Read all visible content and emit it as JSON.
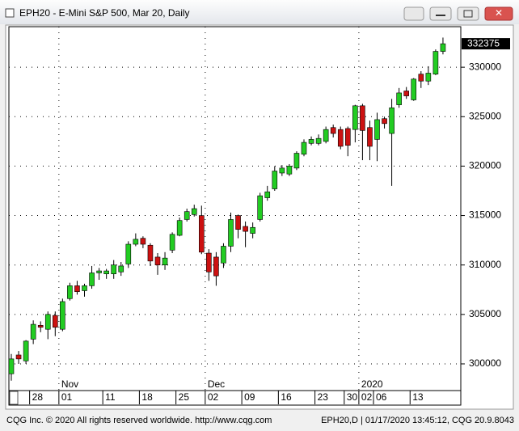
{
  "window": {
    "title": "EPH20 - E-Mini S&P 500, Mar 20, Daily"
  },
  "footer": {
    "left": "CQG Inc. © 2020 All rights reserved worldwide. http://www.cqg.com",
    "right": "EPH20,D | 01/17/2020 13:45:12, CQG 20.9.8043"
  },
  "chart_data": {
    "type": "candlestick",
    "categories": [
      null,
      null,
      null,
      "28",
      null,
      null,
      null,
      "01",
      null,
      null,
      null,
      null,
      null,
      "11",
      null,
      null,
      null,
      null,
      "18",
      null,
      null,
      null,
      null,
      "25",
      null,
      null,
      null,
      "02",
      null,
      null,
      null,
      null,
      "09",
      null,
      null,
      null,
      null,
      "16",
      null,
      null,
      null,
      null,
      "23",
      null,
      null,
      null,
      "30",
      null,
      "02",
      null,
      "06",
      null,
      null,
      null,
      null,
      "13",
      null,
      null,
      null,
      null
    ],
    "period_labels": [
      null,
      null,
      null,
      null,
      null,
      null,
      null,
      "Nov",
      null,
      null,
      null,
      null,
      null,
      null,
      null,
      null,
      null,
      null,
      null,
      null,
      null,
      null,
      null,
      null,
      null,
      null,
      null,
      "Dec",
      null,
      null,
      null,
      null,
      null,
      null,
      null,
      null,
      null,
      null,
      null,
      null,
      null,
      null,
      null,
      null,
      null,
      null,
      null,
      null,
      "2020",
      null,
      null,
      null,
      null,
      null,
      null,
      null,
      null,
      null,
      null,
      null
    ],
    "open": [
      299000,
      300900,
      300300,
      302500,
      303900,
      303500,
      304900,
      303500,
      306600,
      307900,
      307400,
      307900,
      309200,
      309100,
      309100,
      309300,
      310100,
      312100,
      312700,
      312000,
      310800,
      310000,
      311500,
      313000,
      314600,
      315100,
      315000,
      311200,
      310800,
      310200,
      311900,
      315000,
      313900,
      313200,
      314600,
      316800,
      317700,
      319300,
      319200,
      319800,
      321200,
      322300,
      322300,
      322500,
      323900,
      323700,
      323800,
      323700,
      326100,
      323900,
      322700,
      324800,
      323300,
      326200,
      327600,
      326700,
      329300,
      328600,
      329300,
      331600
    ],
    "high": [
      301000,
      301300,
      302400,
      304400,
      304300,
      305300,
      305300,
      306600,
      308200,
      308400,
      308100,
      309900,
      309700,
      309600,
      310500,
      310300,
      312400,
      313200,
      312900,
      312200,
      311200,
      311300,
      313300,
      314800,
      315700,
      316100,
      316000,
      311600,
      311300,
      312200,
      315300,
      315100,
      314400,
      314300,
      317300,
      318000,
      320000,
      320100,
      320200,
      321500,
      322700,
      323000,
      323200,
      324000,
      324200,
      324000,
      324000,
      326200,
      326300,
      324600,
      325400,
      325000,
      326800,
      327900,
      328000,
      328900,
      329600,
      330100,
      331800,
      333000
    ],
    "low": [
      298300,
      300000,
      300000,
      302000,
      303200,
      302500,
      302800,
      303300,
      306400,
      307000,
      306800,
      307600,
      308500,
      308600,
      308600,
      308900,
      309700,
      311900,
      311700,
      309900,
      309000,
      309500,
      311200,
      312900,
      314400,
      314900,
      311100,
      308400,
      307900,
      309700,
      311300,
      312700,
      311800,
      312700,
      314400,
      316500,
      317500,
      319000,
      319000,
      319600,
      321000,
      322100,
      322100,
      322300,
      322900,
      321700,
      321000,
      322400,
      320600,
      320600,
      320500,
      323800,
      318000,
      325900,
      326800,
      326600,
      327900,
      328200,
      329200,
      331300
    ],
    "close": [
      300500,
      300500,
      302300,
      304000,
      303700,
      305000,
      303700,
      306300,
      307900,
      307300,
      307900,
      309200,
      309400,
      309400,
      310000,
      309900,
      312100,
      312600,
      312100,
      310400,
      310000,
      310700,
      313100,
      314500,
      315400,
      315700,
      311300,
      309300,
      308900,
      311900,
      314600,
      313600,
      313400,
      313800,
      317000,
      317400,
      319500,
      319800,
      320000,
      321300,
      322400,
      322700,
      322800,
      323700,
      323300,
      322000,
      322100,
      326100,
      323600,
      322000,
      324700,
      324300,
      325900,
      327400,
      327100,
      328800,
      328600,
      329400,
      331600,
      332375
    ],
    "up_color": "#22cc22",
    "down_color": "#cc1111",
    "ylim": [
      297300,
      334100
    ],
    "yticks": [
      300000,
      305000,
      310000,
      315000,
      320000,
      325000,
      330000
    ],
    "grid": true
  }
}
